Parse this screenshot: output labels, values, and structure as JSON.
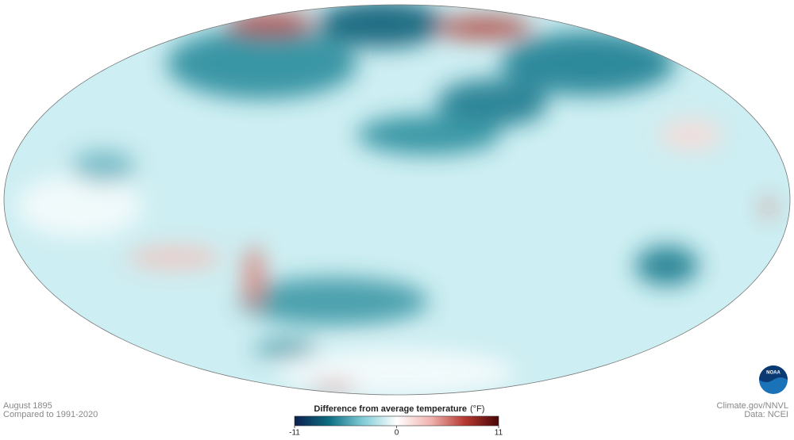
{
  "map": {
    "date": "August 1895",
    "baseline": "Compared to 1991-2020",
    "credit": "Climate.gov/NNVL",
    "source": "Data: NCEI",
    "logo": "NOAA"
  },
  "legend": {
    "title": "Difference from average temperature",
    "unit": "(°F)",
    "range": [
      -11,
      11
    ],
    "ticks": [
      -11,
      0,
      11
    ],
    "colors": [
      "#0d1f4f",
      "#0b6c80",
      "#7fcbd6",
      "#ffffff",
      "#f0b4b0",
      "#b63a32",
      "#4a0606"
    ]
  }
}
